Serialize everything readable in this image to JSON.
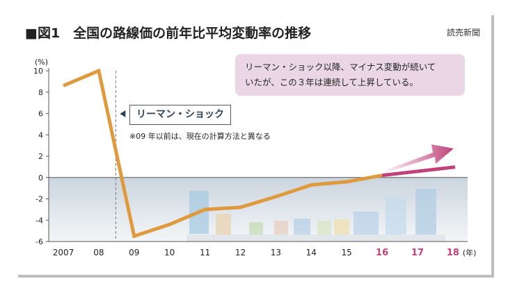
{
  "title": "■図1　全国の路線価の前年比平均変動率の推移",
  "source": "読売新聞",
  "unit_label": "(%)",
  "x_unit_label": "(年)",
  "callout": {
    "line1": "リーマン・ショック以降、マイナス変動が続いて",
    "line2": "いたが、この３年は連続して上昇している。"
  },
  "lehman_label": "リーマン・ショック",
  "footnote": "※09 年以前は、現在の計算方法と異なる",
  "colors": {
    "line": "#e09a3e",
    "highlight_tick": "#c0427a",
    "arrow": "#c0427a",
    "negative_band": "#d5dde5",
    "callout_bg": "#ead6e4"
  },
  "chart_data": {
    "type": "line",
    "categories": [
      "2007",
      "08",
      "09",
      "10",
      "11",
      "12",
      "13",
      "14",
      "15",
      "16",
      "17",
      "18"
    ],
    "highlighted_categories": [
      "16",
      "17",
      "18"
    ],
    "y_ticks": [
      "10",
      "8",
      "6",
      "4",
      "2",
      "0",
      "-2",
      "-4",
      "-6"
    ],
    "ylim": [
      -6,
      10
    ],
    "series": [
      {
        "values": [
          8.6,
          10.0,
          -5.5,
          -4.4,
          -3.0,
          -2.8,
          -1.8,
          -0.7,
          -0.4,
          0.2,
          null,
          null
        ]
      }
    ],
    "annotations": [
      {
        "type": "vline",
        "x_between": [
          "08",
          "09"
        ],
        "label": "リーマン・ショック"
      },
      {
        "type": "arrow",
        "from": "16",
        "to": "18",
        "meaning": "upward trend continuing"
      }
    ]
  }
}
